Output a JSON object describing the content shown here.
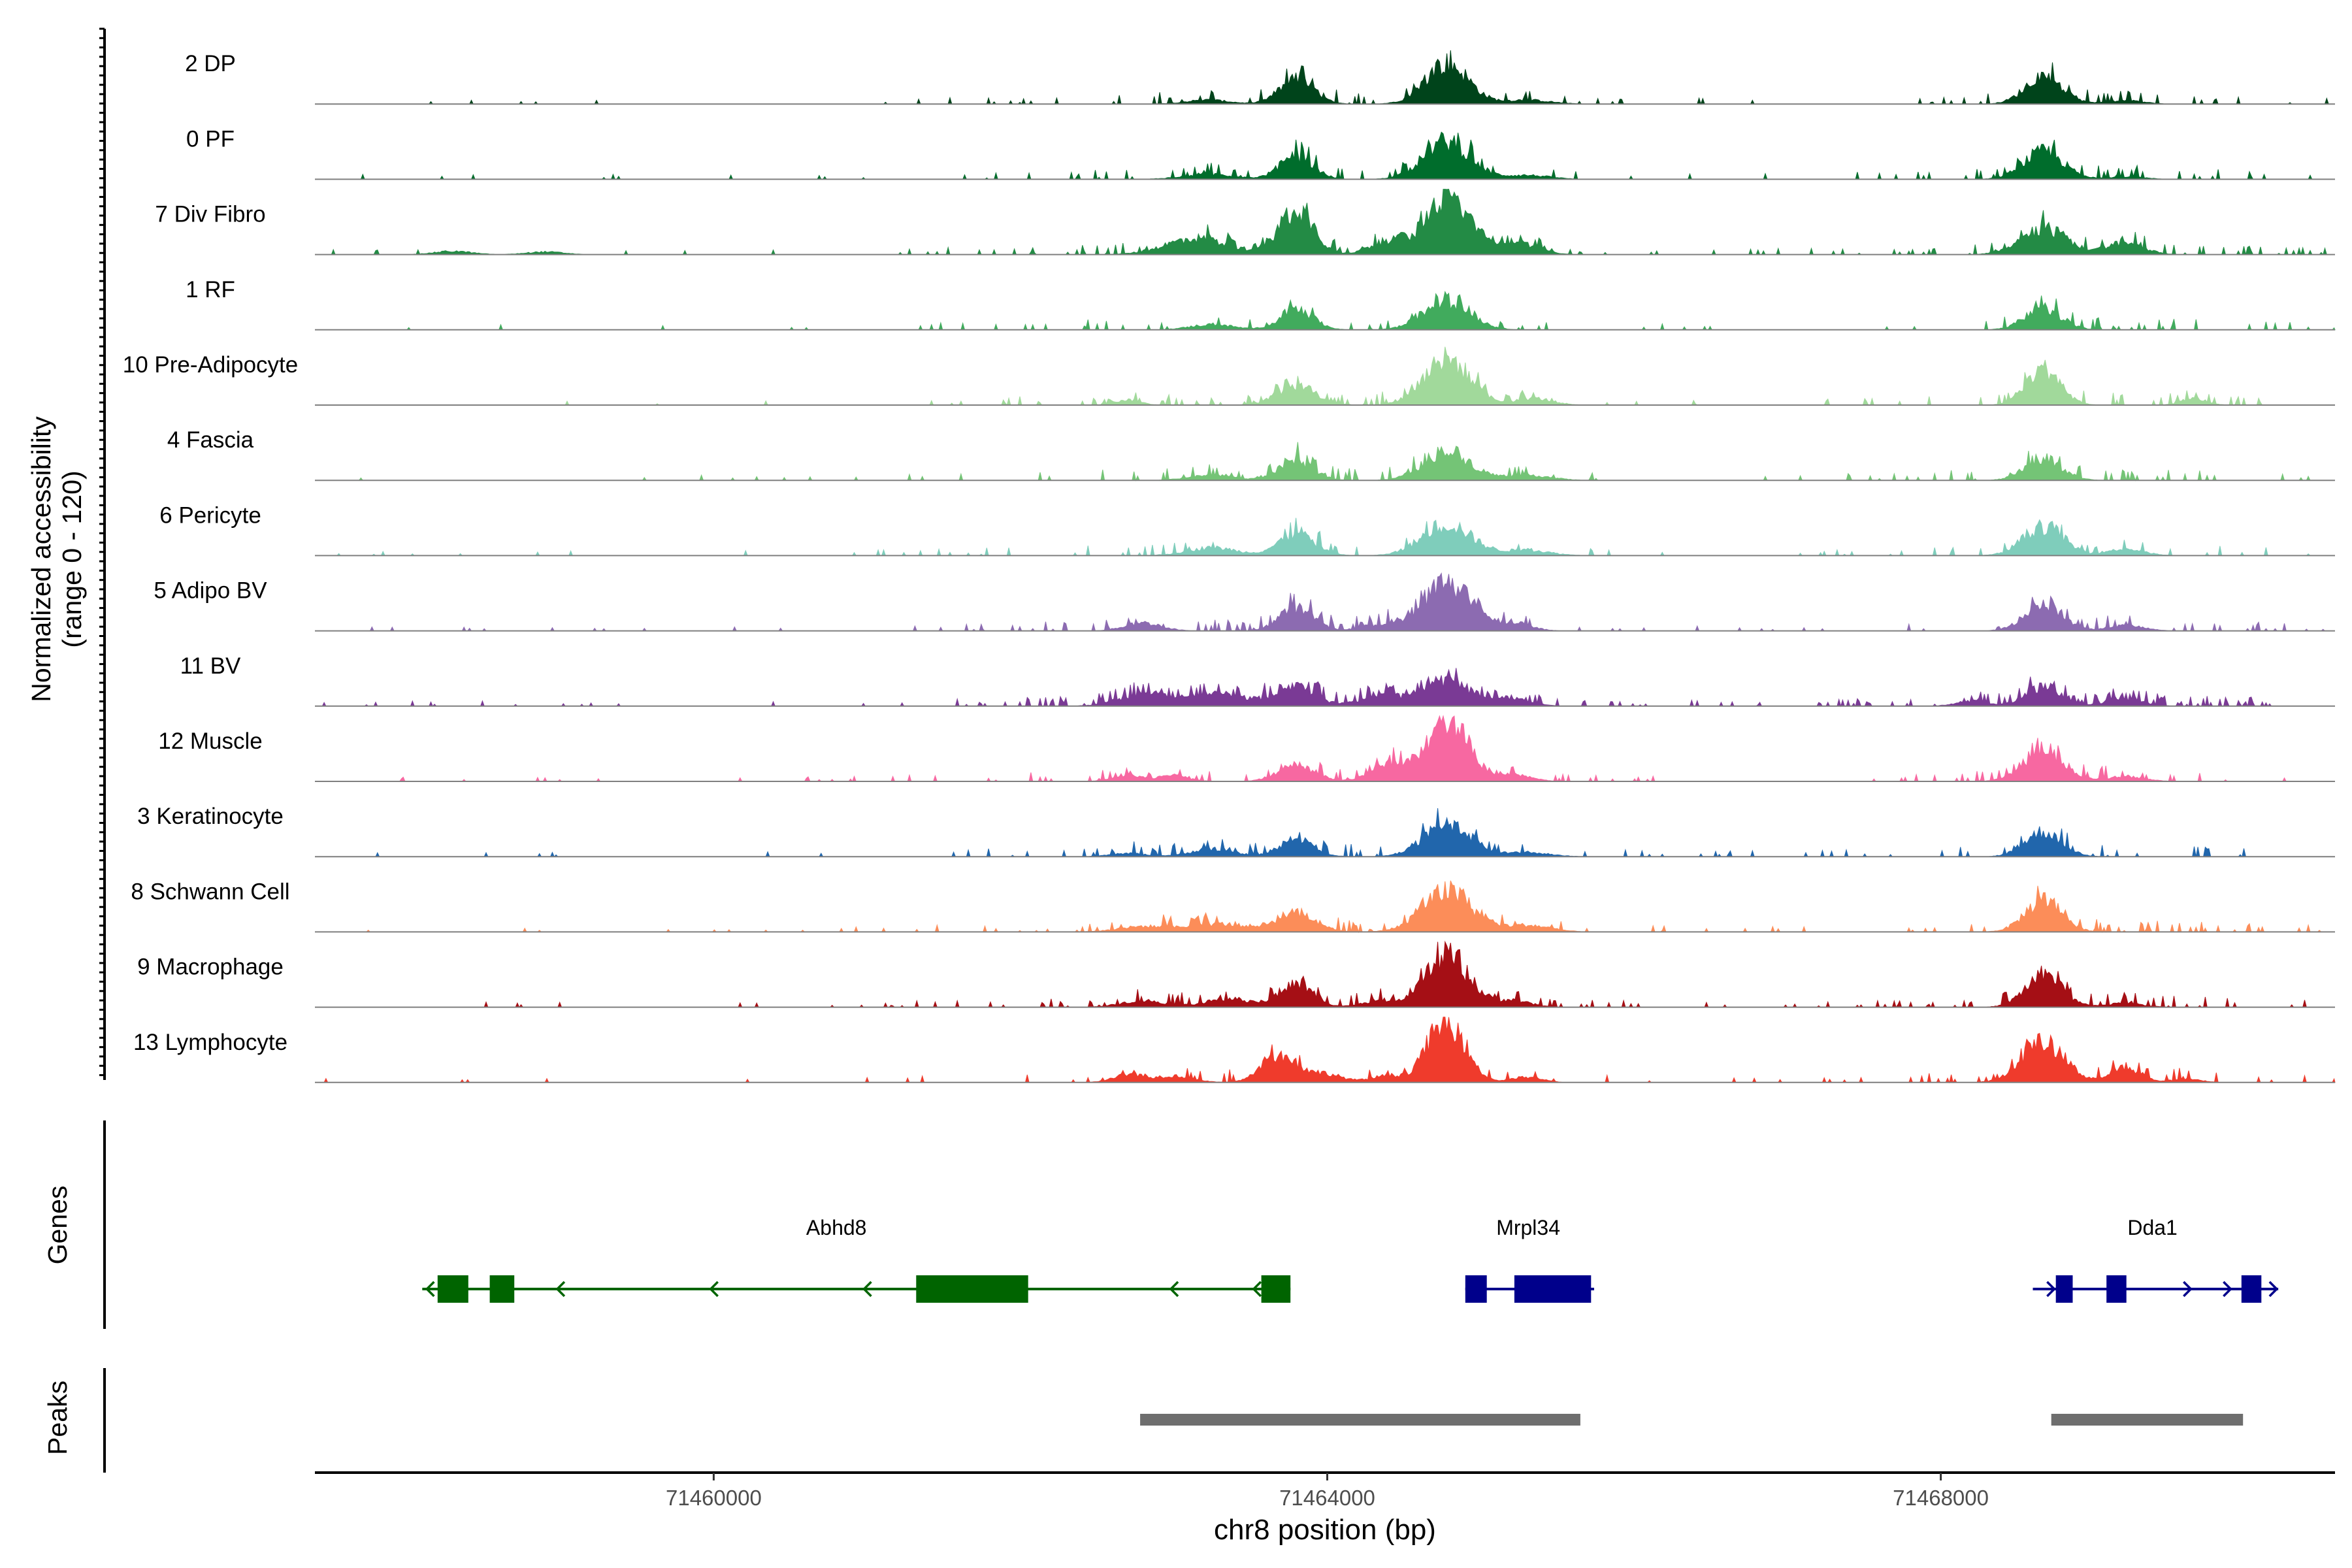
{
  "chart_data": {
    "type": "area",
    "subtype": "genome-coverage-track",
    "y_axis_label_line1": "Normalized accessibility",
    "y_axis_label_line2": "(range 0 - 120)",
    "y_range": [
      0,
      120
    ],
    "x_axis_title": "chr8 position (bp)",
    "x_range": [
      71457400,
      71470570
    ],
    "x_ticks": [
      {
        "value": 71460000,
        "label": "71460000"
      },
      {
        "value": 71464000,
        "label": "71464000"
      },
      {
        "value": 71468000,
        "label": "71468000"
      }
    ],
    "peak_centers": [
      71462650,
      71463800,
      71464780,
      71468670,
      71469200
    ],
    "tracks": [
      {
        "label": "2 DP",
        "color": "#00441b",
        "noise": 0.035,
        "peaks": [
          [
            71463220,
            0.06,
            140
          ],
          [
            71463800,
            0.38,
            110
          ],
          [
            71464780,
            0.62,
            140
          ],
          [
            71465300,
            0.06,
            150
          ],
          [
            71468670,
            0.42,
            120
          ],
          [
            71469200,
            0.05,
            120
          ]
        ]
      },
      {
        "label": "0 PF",
        "color": "#006d2c",
        "noise": 0.04,
        "peaks": [
          [
            71463220,
            0.08,
            160
          ],
          [
            71463800,
            0.34,
            110
          ],
          [
            71464780,
            0.58,
            150
          ],
          [
            71465300,
            0.06,
            150
          ],
          [
            71468670,
            0.42,
            130
          ],
          [
            71469200,
            0.04,
            120
          ]
        ]
      },
      {
        "label": "7 Div Fibro",
        "color": "#238b45",
        "noise": 0.06,
        "peaks": [
          [
            71458300,
            0.05,
            120
          ],
          [
            71458900,
            0.04,
            120
          ],
          [
            71463150,
            0.25,
            200
          ],
          [
            71463800,
            0.7,
            110
          ],
          [
            71464400,
            0.2,
            120
          ],
          [
            71464780,
            0.85,
            140
          ],
          [
            71465200,
            0.2,
            150
          ],
          [
            71468670,
            0.4,
            150
          ],
          [
            71469200,
            0.18,
            120
          ]
        ]
      },
      {
        "label": "1 RF",
        "color": "#41ab5d",
        "noise": 0.03,
        "peaks": [
          [
            71463250,
            0.08,
            140
          ],
          [
            71463800,
            0.3,
            110
          ],
          [
            71464780,
            0.45,
            150
          ],
          [
            71468670,
            0.32,
            120
          ]
        ]
      },
      {
        "label": "10 Pre-Adipocyte",
        "color": "#a1d99b",
        "noise": 0.05,
        "peaks": [
          [
            71462700,
            0.08,
            80
          ],
          [
            71463800,
            0.28,
            130
          ],
          [
            71464780,
            0.7,
            150
          ],
          [
            71465350,
            0.1,
            120
          ],
          [
            71468670,
            0.55,
            110
          ],
          [
            71469650,
            0.1,
            80
          ]
        ]
      },
      {
        "label": "4 Fascia",
        "color": "#74c476",
        "noise": 0.04,
        "peaks": [
          [
            71463250,
            0.08,
            150
          ],
          [
            71463800,
            0.3,
            110
          ],
          [
            71464780,
            0.45,
            150
          ],
          [
            71465300,
            0.08,
            150
          ],
          [
            71468670,
            0.32,
            120
          ]
        ]
      },
      {
        "label": "6 Pericyte",
        "color": "#7fcdbb",
        "noise": 0.04,
        "peaks": [
          [
            71463250,
            0.12,
            160
          ],
          [
            71463800,
            0.32,
            120
          ],
          [
            71464780,
            0.48,
            160
          ],
          [
            71465300,
            0.08,
            150
          ],
          [
            71468670,
            0.45,
            130
          ],
          [
            71469200,
            0.1,
            120
          ]
        ]
      },
      {
        "label": "5 Adipo BV",
        "color": "#8c6bb1",
        "noise": 0.05,
        "peaks": [
          [
            71462800,
            0.12,
            120
          ],
          [
            71463800,
            0.35,
            110
          ],
          [
            71464350,
            0.1,
            120
          ],
          [
            71464780,
            0.75,
            150
          ],
          [
            71465200,
            0.12,
            120
          ],
          [
            71468670,
            0.42,
            120
          ],
          [
            71469200,
            0.08,
            120
          ]
        ]
      },
      {
        "label": "11 BV",
        "color": "#7a3a95",
        "noise": 0.08,
        "peaks": [
          [
            71462800,
            0.18,
            160
          ],
          [
            71463300,
            0.18,
            200
          ],
          [
            71463800,
            0.3,
            120
          ],
          [
            71464350,
            0.15,
            150
          ],
          [
            71464780,
            0.38,
            150
          ],
          [
            71465200,
            0.12,
            120
          ],
          [
            71468200,
            0.08,
            100
          ],
          [
            71468670,
            0.28,
            120
          ],
          [
            71469200,
            0.1,
            120
          ]
        ]
      },
      {
        "label": "12 Muscle",
        "color": "#f768a1",
        "noise": 0.05,
        "peaks": [
          [
            71462700,
            0.1,
            100
          ],
          [
            71463000,
            0.08,
            100
          ],
          [
            71463800,
            0.25,
            120
          ],
          [
            71464400,
            0.25,
            120
          ],
          [
            71464780,
            0.92,
            140
          ],
          [
            71465200,
            0.1,
            120
          ],
          [
            71468670,
            0.48,
            130
          ],
          [
            71469200,
            0.08,
            120
          ]
        ]
      },
      {
        "label": "3 Keratinocyte",
        "color": "#2166ac",
        "noise": 0.04,
        "peaks": [
          [
            71462700,
            0.05,
            120
          ],
          [
            71463250,
            0.12,
            140
          ],
          [
            71463800,
            0.28,
            110
          ],
          [
            71464780,
            0.52,
            150
          ],
          [
            71465300,
            0.06,
            150
          ],
          [
            71468670,
            0.38,
            120
          ]
        ]
      },
      {
        "label": "8 Schwann Cell",
        "color": "#fc8d59",
        "noise": 0.05,
        "peaks": [
          [
            71462800,
            0.08,
            160
          ],
          [
            71463300,
            0.12,
            200
          ],
          [
            71463800,
            0.28,
            130
          ],
          [
            71464780,
            0.62,
            160
          ],
          [
            71465300,
            0.1,
            150
          ],
          [
            71468670,
            0.48,
            120
          ]
        ]
      },
      {
        "label": "9 Macrophage",
        "color": "#a50f15",
        "noise": 0.05,
        "peaks": [
          [
            71462800,
            0.1,
            140
          ],
          [
            71463350,
            0.12,
            150
          ],
          [
            71463800,
            0.35,
            110
          ],
          [
            71464350,
            0.1,
            120
          ],
          [
            71464780,
            0.78,
            140
          ],
          [
            71465200,
            0.1,
            120
          ],
          [
            71468670,
            0.48,
            120
          ],
          [
            71469200,
            0.06,
            120
          ]
        ]
      },
      {
        "label": "13 Lymphocyte",
        "color": "#ef3b2c",
        "noise": 0.04,
        "peaks": [
          [
            71462700,
            0.12,
            100
          ],
          [
            71463000,
            0.1,
            120
          ],
          [
            71463700,
            0.4,
            120
          ],
          [
            71464000,
            0.12,
            100
          ],
          [
            71464400,
            0.1,
            120
          ],
          [
            71464780,
            0.95,
            120
          ],
          [
            71465300,
            0.08,
            100
          ],
          [
            71468670,
            0.6,
            140
          ],
          [
            71469200,
            0.22,
            100
          ],
          [
            71469600,
            0.05,
            100
          ]
        ]
      }
    ],
    "genes_label": "Genes",
    "genes": [
      {
        "name": "Abhd8",
        "color": "#006400",
        "strand": "-",
        "start": 71458100,
        "end": 71463760,
        "label_pos": 71460800,
        "exons": [
          [
            71458200,
            71458400
          ],
          [
            71458540,
            71458700
          ],
          [
            71461320,
            71462050
          ],
          [
            71463570,
            71463760
          ]
        ],
        "arrows": [
          71458130,
          71458980,
          71459980,
          71460980,
          71462980,
          71463520
        ]
      },
      {
        "name": "Mrpl34",
        "color": "#00008b",
        "strand": "+",
        "start": 71464900,
        "end": 71465740,
        "label_pos": 71465310,
        "exons": [
          [
            71464900,
            71465040
          ],
          [
            71465220,
            71465720
          ]
        ],
        "arrows": []
      },
      {
        "name": "Dda1",
        "color": "#00008b",
        "strand": "+",
        "start": 71468600,
        "end": 71470200,
        "label_pos": 71469380,
        "exons": [
          [
            71468750,
            71468860
          ],
          [
            71469080,
            71469210
          ],
          [
            71469960,
            71470090
          ]
        ],
        "arrows": [
          71468740,
          71469630,
          71469890,
          71470190
        ]
      }
    ],
    "peaks_label": "Peaks",
    "peak_regions": [
      [
        71462780,
        71465650
      ],
      [
        71468720,
        71469970
      ]
    ]
  }
}
